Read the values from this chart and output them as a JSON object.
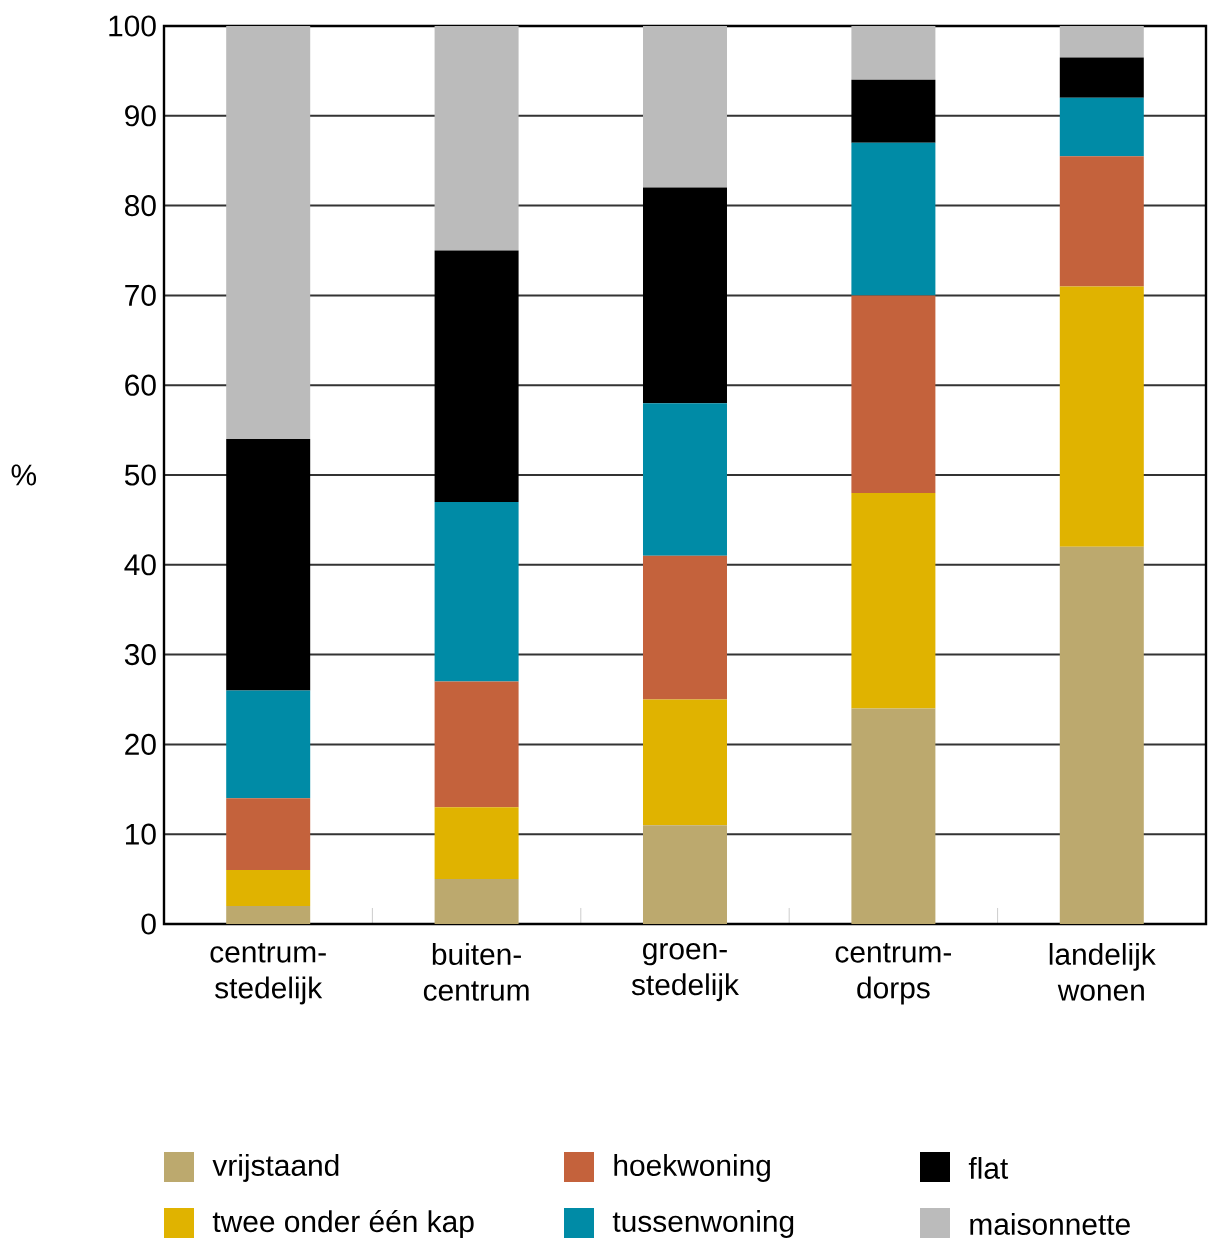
{
  "chart_data": {
    "type": "bar",
    "stacked": true,
    "ylabel": "%",
    "categories": [
      "centrum- stedelijk",
      "buiten- centrum",
      "groen- stedelijk",
      "centrum- dorps",
      "landelijk wonen"
    ],
    "series": [
      {
        "name": "vrijstaand",
        "color": "#bca96e",
        "values": [
          2,
          5,
          11,
          24,
          42
        ]
      },
      {
        "name": "twee onder één kap",
        "color": "#e0b300",
        "values": [
          4,
          8,
          14,
          24,
          29
        ]
      },
      {
        "name": "hoekwoning",
        "color": "#c4623c",
        "values": [
          8,
          14,
          16,
          22,
          14.5
        ]
      },
      {
        "name": "tussenwoning",
        "color": "#008ba6",
        "values": [
          12,
          20,
          17,
          17,
          6.5
        ]
      },
      {
        "name": "flat",
        "color": "#000000",
        "values": [
          28,
          28,
          24,
          7,
          4.5
        ]
      },
      {
        "name": "maisonnette",
        "color": "#bbbbbb",
        "values": [
          46,
          25,
          18,
          6,
          3.5
        ]
      }
    ],
    "ylim": [
      0,
      100
    ],
    "yticks": [
      0,
      10,
      20,
      30,
      40,
      50,
      60,
      70,
      80,
      90,
      100
    ],
    "grid": "y",
    "legend": "bottom"
  }
}
